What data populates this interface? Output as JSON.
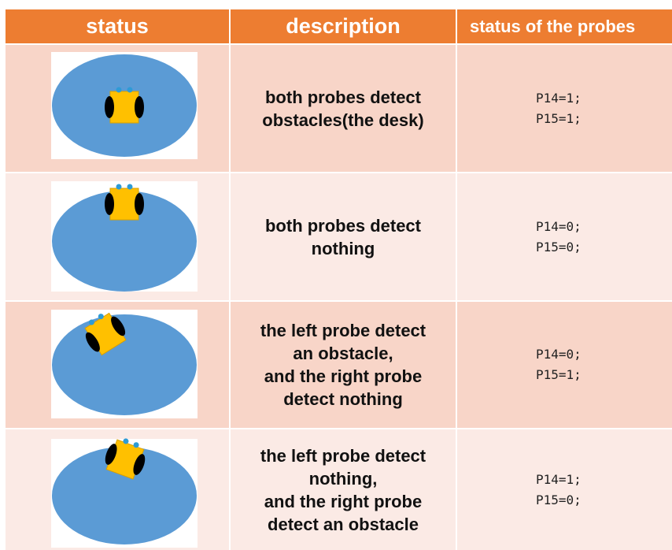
{
  "header": [
    "status",
    "description",
    "status of the probes"
  ],
  "rows": [
    {
      "description": [
        "both probes detect",
        "obstacles(the desk)"
      ],
      "probes": [
        "P14=1;",
        "P15=1;"
      ]
    },
    {
      "description": [
        "both probes detect",
        "nothing"
      ],
      "probes": [
        "P14=0;",
        "P15=0;"
      ]
    },
    {
      "description": [
        "the left probe detect",
        "an obstacle,",
        "and the right probe",
        "detect nothing"
      ],
      "probes": [
        "P14=0;",
        "P15=1;"
      ]
    },
    {
      "description": [
        "the left probe detect",
        "nothing,",
        "and the right probe",
        "detect an obstacle"
      ],
      "probes": [
        "P14=1;",
        "P15=0;"
      ]
    }
  ]
}
